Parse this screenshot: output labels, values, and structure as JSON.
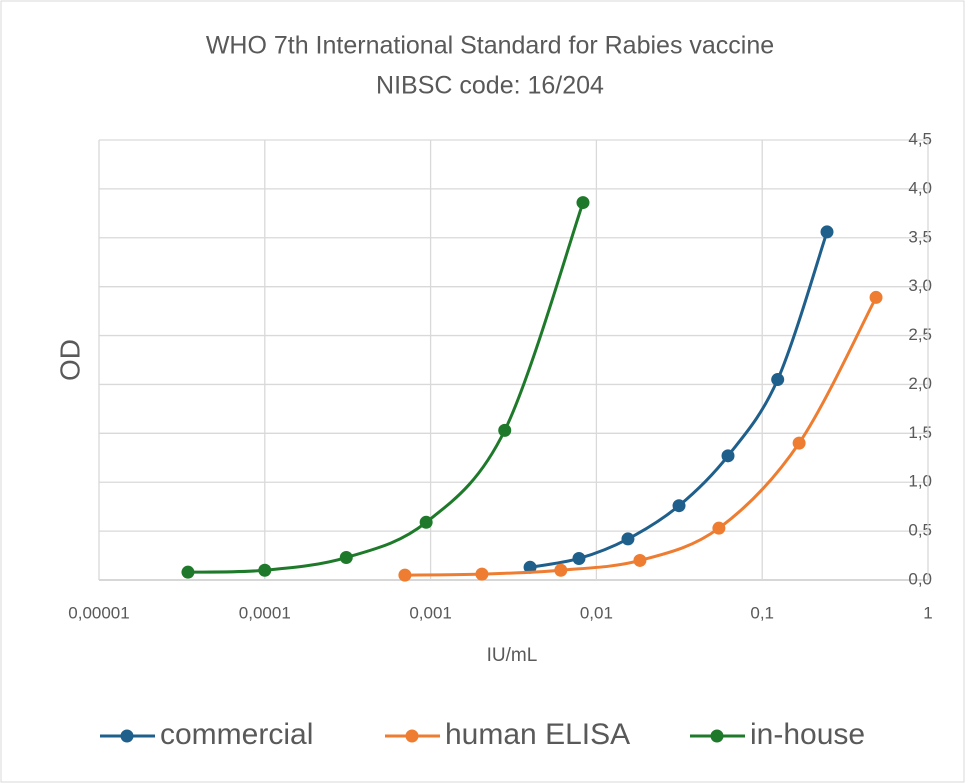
{
  "chart_data": {
    "type": "line",
    "title": "WHO 7th International Standard for Rabies vaccine",
    "subtitle": "NIBSC code: 16/204",
    "xlabel": "IU/mL",
    "ylabel": "OD",
    "xscale": "log",
    "grid": true,
    "smooth": true,
    "legend": "bottom",
    "yaxis_side": "right",
    "xlim": [
      1e-05,
      1
    ],
    "xticks": [
      {
        "value": 1e-05,
        "label": "0,00001"
      },
      {
        "value": 0.0001,
        "label": "0,0001"
      },
      {
        "value": 0.001,
        "label": "0,001"
      },
      {
        "value": 0.01,
        "label": "0,01"
      },
      {
        "value": 0.1,
        "label": "0,1"
      },
      1
    ],
    "ylim": [
      0,
      4.5
    ],
    "yticks": [
      {
        "value": 0,
        "label": "0,0"
      },
      {
        "value": 0.5,
        "label": "0,5"
      },
      {
        "value": 1,
        "label": "1,0"
      },
      {
        "value": 1.5,
        "label": "1,5"
      },
      {
        "value": 2,
        "label": "2,0"
      },
      {
        "value": 2.5,
        "label": "2,5"
      },
      {
        "value": 3,
        "label": "3,0"
      },
      {
        "value": 3.5,
        "label": "3,5"
      },
      {
        "value": 4,
        "label": "4,0"
      },
      {
        "value": 4.5,
        "label": "4,5"
      }
    ],
    "series": [
      {
        "name": "commercial",
        "color": "#1f5f8b",
        "x": [
          0.00398,
          0.00785,
          0.0155,
          0.0315,
          0.0622,
          0.124,
          0.246
        ],
        "values": [
          0.13,
          0.22,
          0.42,
          0.76,
          1.27,
          2.05,
          3.56
        ]
      },
      {
        "name": "human ELISA",
        "color": "#ee7d31",
        "x": [
          0.0007,
          0.00204,
          0.0061,
          0.0183,
          0.0548,
          0.167,
          0.486
        ],
        "values": [
          0.05,
          0.06,
          0.1,
          0.2,
          0.53,
          1.4,
          2.89
        ]
      },
      {
        "name": "in-house",
        "color": "#1e7a2a",
        "x": [
          3.44e-05,
          0.0001,
          0.00031,
          0.00094,
          0.0028,
          0.0083
        ],
        "values": [
          0.08,
          0.1,
          0.23,
          0.59,
          1.53,
          3.86
        ]
      }
    ]
  }
}
